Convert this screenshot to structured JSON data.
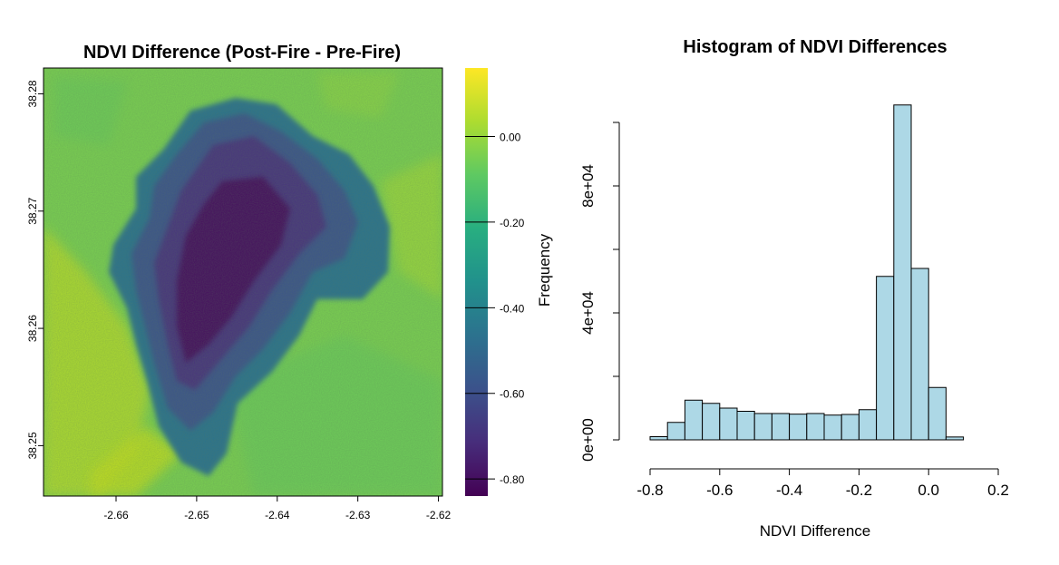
{
  "chart_data": [
    {
      "type": "heatmap",
      "title": "NDVI Difference (Post-Fire - Pre-Fire)",
      "x_ticks": [
        "-2.66",
        "-2.65",
        "-2.64",
        "-2.63",
        "-2.62"
      ],
      "y_ticks": [
        "38.25",
        "38.26",
        "38.27",
        "38.28"
      ],
      "x_range": [
        -2.669,
        -2.6195
      ],
      "y_range": [
        38.2457,
        38.2822
      ],
      "colorbar": {
        "palette": "viridis",
        "range": [
          -0.84,
          0.16
        ],
        "ticks": [
          "0.00",
          "-0.20",
          "-0.40",
          "-0.60",
          "-0.80"
        ],
        "label": "Frequency"
      }
    },
    {
      "type": "bar",
      "title": "Histogram of NDVI Differences",
      "xlabel": "NDVI Difference",
      "ylabel": "Frequency",
      "bar_color": "#add8e6",
      "bin_edges": [
        -0.8,
        -0.75,
        -0.7,
        -0.65,
        -0.6,
        -0.55,
        -0.5,
        -0.45,
        -0.4,
        -0.35,
        -0.3,
        -0.25,
        -0.2,
        -0.15,
        -0.1,
        -0.05,
        0.0,
        0.05,
        0.1
      ],
      "values": [
        1000,
        5500,
        12500,
        11500,
        10000,
        9000,
        8300,
        8300,
        8100,
        8300,
        7800,
        8000,
        9500,
        51500,
        105500,
        54000,
        16500,
        900
      ],
      "xlim": [
        -0.8,
        0.2
      ],
      "ylim": [
        0,
        100000
      ],
      "x_ticks": [
        "-0.8",
        "-0.6",
        "-0.4",
        "-0.2",
        "0.0",
        "0.2"
      ],
      "y_ticks": [
        "0e+00",
        "4e+04",
        "8e+04"
      ]
    }
  ]
}
